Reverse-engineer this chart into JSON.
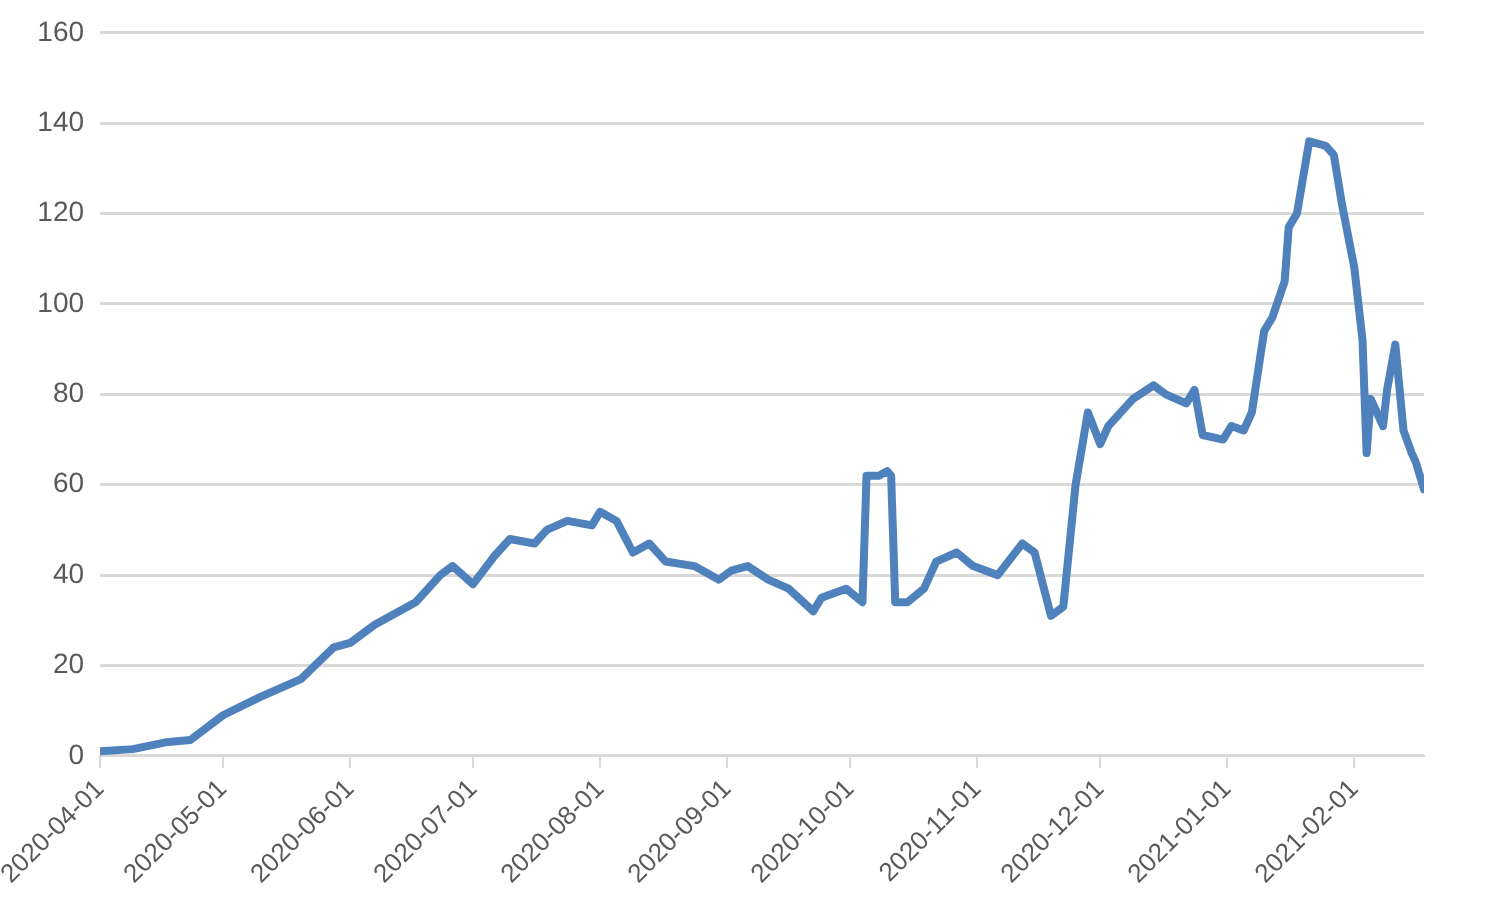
{
  "chart_data": {
    "type": "line",
    "x": [
      "2020-04-01",
      "2020-04-09",
      "2020-04-17",
      "2020-04-23",
      "2020-05-01",
      "2020-05-10",
      "2020-05-20",
      "2020-05-28",
      "2020-06-01",
      "2020-06-07",
      "2020-06-17",
      "2020-06-23",
      "2020-06-26",
      "2020-07-01",
      "2020-07-06",
      "2020-07-10",
      "2020-07-16",
      "2020-07-19",
      "2020-07-24",
      "2020-07-30",
      "2020-08-01",
      "2020-08-05",
      "2020-08-09",
      "2020-08-13",
      "2020-08-17",
      "2020-08-24",
      "2020-08-30",
      "2020-09-02",
      "2020-09-06",
      "2020-09-11",
      "2020-09-16",
      "2020-09-22",
      "2020-09-24",
      "2020-09-30",
      "2020-10-04",
      "2020-10-05",
      "2020-10-08",
      "2020-10-10",
      "2020-10-11",
      "2020-10-12",
      "2020-10-15",
      "2020-10-19",
      "2020-10-22",
      "2020-10-27",
      "2020-10-31",
      "2020-11-06",
      "2020-11-12",
      "2020-11-15",
      "2020-11-19",
      "2020-11-22",
      "2020-11-25",
      "2020-11-28",
      "2020-12-01",
      "2020-12-03",
      "2020-12-09",
      "2020-12-14",
      "2020-12-17",
      "2020-12-22",
      "2020-12-24",
      "2020-12-26",
      "2020-12-31",
      "2021-01-02",
      "2021-01-05",
      "2021-01-07",
      "2021-01-10",
      "2021-01-12",
      "2021-01-15",
      "2021-01-16",
      "2021-01-18",
      "2021-01-21",
      "2021-01-25",
      "2021-01-27",
      "2021-01-29",
      "2021-02-01",
      "2021-02-03",
      "2021-02-04",
      "2021-02-05",
      "2021-02-08",
      "2021-02-09",
      "2021-02-11",
      "2021-02-13",
      "2021-02-15",
      "2021-02-16",
      "2021-02-18"
    ],
    "series": [
      {
        "color": "#4f81bd",
        "values": [
          1,
          1.5,
          3,
          3.5,
          9,
          13,
          17,
          24,
          25,
          29,
          34,
          40,
          42,
          38,
          44,
          48,
          47,
          50,
          52,
          51,
          54,
          52,
          45,
          47,
          43,
          42,
          39,
          41,
          42,
          39,
          37,
          32,
          35,
          37,
          34,
          62,
          62,
          63,
          62,
          34,
          34,
          37,
          43,
          45,
          42,
          40,
          47,
          45,
          31,
          33,
          60,
          76,
          69,
          73,
          79,
          82,
          80,
          78,
          81,
          71,
          70,
          73,
          72,
          76,
          94,
          97,
          105,
          117,
          120,
          136,
          135,
          133,
          122,
          108,
          92,
          67,
          79,
          73,
          81,
          91,
          72,
          67,
          65,
          59
        ]
      }
    ],
    "xlim": [
      "2020-04-01",
      "2021-02-18"
    ],
    "xticks": [
      "2020-04-01",
      "2020-05-01",
      "2020-06-01",
      "2020-07-01",
      "2020-08-01",
      "2020-09-01",
      "2020-10-01",
      "2020-11-01",
      "2020-12-01",
      "2021-01-01",
      "2021-02-01"
    ],
    "ylim": [
      0,
      160
    ],
    "yticks": [
      0,
      20,
      40,
      60,
      80,
      100,
      120,
      140,
      160
    ],
    "grid": "y",
    "legend": false,
    "marker": "none",
    "line_style": "solid"
  }
}
